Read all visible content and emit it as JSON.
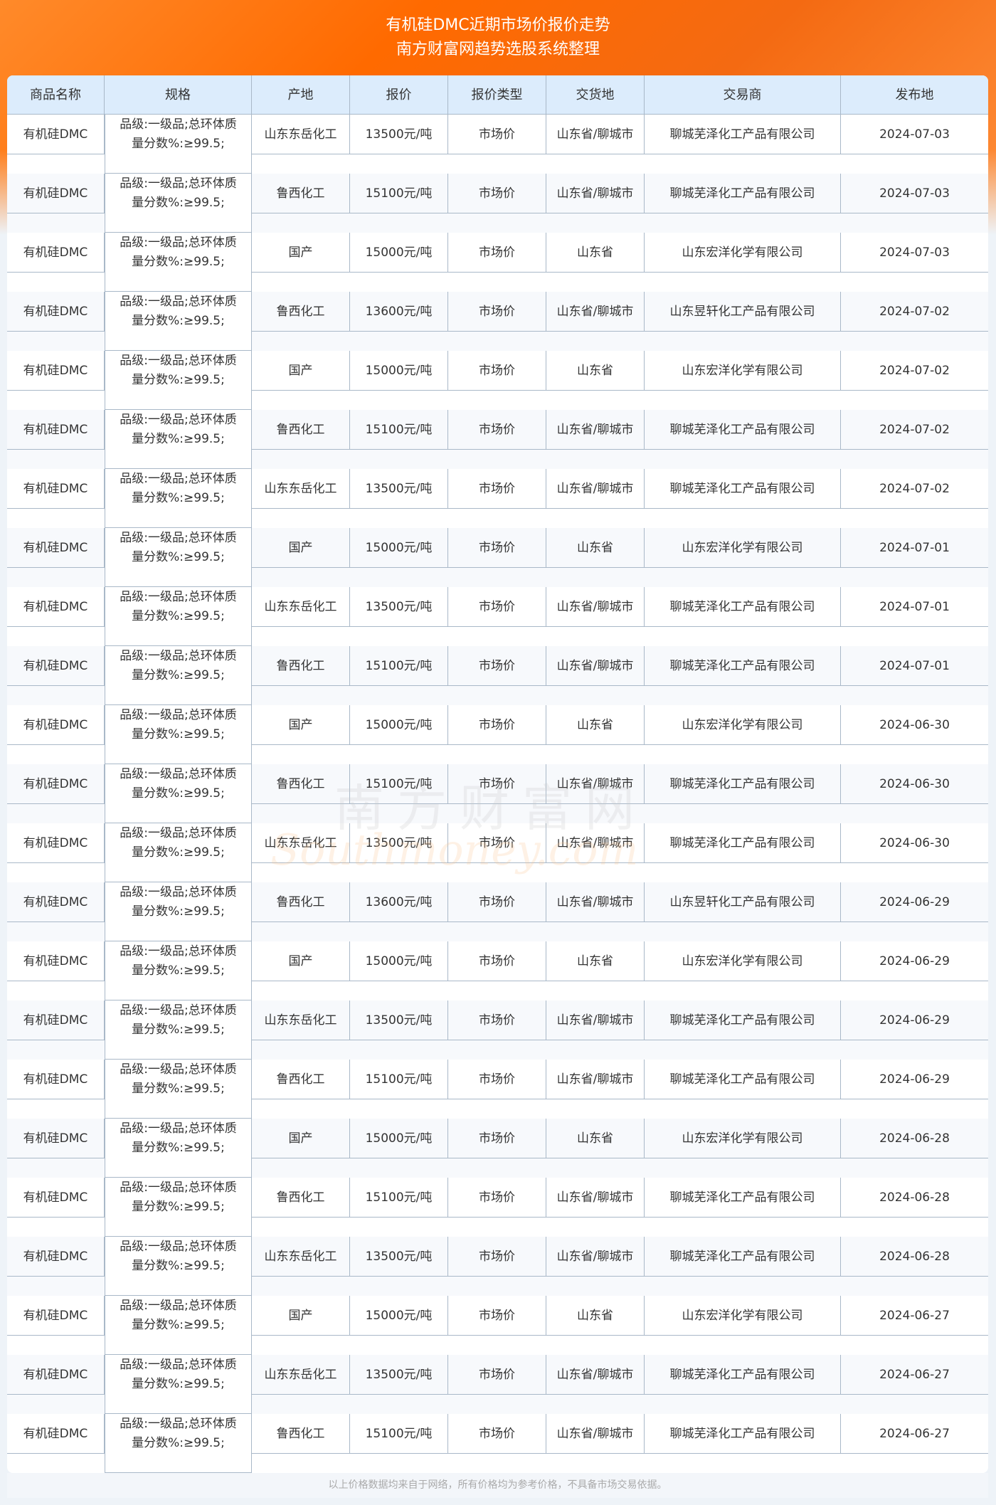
{
  "header": {
    "title": "有机硅DMC近期市场价报价走势",
    "subtitle": "南方财富网趋势选股系统整理"
  },
  "watermark": {
    "cn": "南方财富网",
    "en": "Southmoney.com"
  },
  "columns": [
    "商品名称",
    "规格",
    "产地",
    "报价",
    "报价类型",
    "交货地",
    "交易商",
    "发布地"
  ],
  "rows": [
    [
      "有机硅DMC",
      "品级:一级品;总环体质量分数%:≥99.5;",
      "山东东岳化工",
      "13500元/吨",
      "市场价",
      "山东省/聊城市",
      "聊城芜泽化工产品有限公司",
      "2024-07-03"
    ],
    [
      "有机硅DMC",
      "品级:一级品;总环体质量分数%:≥99.5;",
      "鲁西化工",
      "15100元/吨",
      "市场价",
      "山东省/聊城市",
      "聊城芜泽化工产品有限公司",
      "2024-07-03"
    ],
    [
      "有机硅DMC",
      "品级:一级品;总环体质量分数%:≥99.5;",
      "国产",
      "15000元/吨",
      "市场价",
      "山东省",
      "山东宏洋化学有限公司",
      "2024-07-03"
    ],
    [
      "有机硅DMC",
      "品级:一级品;总环体质量分数%:≥99.5;",
      "鲁西化工",
      "13600元/吨",
      "市场价",
      "山东省/聊城市",
      "山东昱轩化工产品有限公司",
      "2024-07-02"
    ],
    [
      "有机硅DMC",
      "品级:一级品;总环体质量分数%:≥99.5;",
      "国产",
      "15000元/吨",
      "市场价",
      "山东省",
      "山东宏洋化学有限公司",
      "2024-07-02"
    ],
    [
      "有机硅DMC",
      "品级:一级品;总环体质量分数%:≥99.5;",
      "鲁西化工",
      "15100元/吨",
      "市场价",
      "山东省/聊城市",
      "聊城芜泽化工产品有限公司",
      "2024-07-02"
    ],
    [
      "有机硅DMC",
      "品级:一级品;总环体质量分数%:≥99.5;",
      "山东东岳化工",
      "13500元/吨",
      "市场价",
      "山东省/聊城市",
      "聊城芜泽化工产品有限公司",
      "2024-07-02"
    ],
    [
      "有机硅DMC",
      "品级:一级品;总环体质量分数%:≥99.5;",
      "国产",
      "15000元/吨",
      "市场价",
      "山东省",
      "山东宏洋化学有限公司",
      "2024-07-01"
    ],
    [
      "有机硅DMC",
      "品级:一级品;总环体质量分数%:≥99.5;",
      "山东东岳化工",
      "13500元/吨",
      "市场价",
      "山东省/聊城市",
      "聊城芜泽化工产品有限公司",
      "2024-07-01"
    ],
    [
      "有机硅DMC",
      "品级:一级品;总环体质量分数%:≥99.5;",
      "鲁西化工",
      "15100元/吨",
      "市场价",
      "山东省/聊城市",
      "聊城芜泽化工产品有限公司",
      "2024-07-01"
    ],
    [
      "有机硅DMC",
      "品级:一级品;总环体质量分数%:≥99.5;",
      "国产",
      "15000元/吨",
      "市场价",
      "山东省",
      "山东宏洋化学有限公司",
      "2024-06-30"
    ],
    [
      "有机硅DMC",
      "品级:一级品;总环体质量分数%:≥99.5;",
      "鲁西化工",
      "15100元/吨",
      "市场价",
      "山东省/聊城市",
      "聊城芜泽化工产品有限公司",
      "2024-06-30"
    ],
    [
      "有机硅DMC",
      "品级:一级品;总环体质量分数%:≥99.5;",
      "山东东岳化工",
      "13500元/吨",
      "市场价",
      "山东省/聊城市",
      "聊城芜泽化工产品有限公司",
      "2024-06-30"
    ],
    [
      "有机硅DMC",
      "品级:一级品;总环体质量分数%:≥99.5;",
      "鲁西化工",
      "13600元/吨",
      "市场价",
      "山东省/聊城市",
      "山东昱轩化工产品有限公司",
      "2024-06-29"
    ],
    [
      "有机硅DMC",
      "品级:一级品;总环体质量分数%:≥99.5;",
      "国产",
      "15000元/吨",
      "市场价",
      "山东省",
      "山东宏洋化学有限公司",
      "2024-06-29"
    ],
    [
      "有机硅DMC",
      "品级:一级品;总环体质量分数%:≥99.5;",
      "山东东岳化工",
      "13500元/吨",
      "市场价",
      "山东省/聊城市",
      "聊城芜泽化工产品有限公司",
      "2024-06-29"
    ],
    [
      "有机硅DMC",
      "品级:一级品;总环体质量分数%:≥99.5;",
      "鲁西化工",
      "15100元/吨",
      "市场价",
      "山东省/聊城市",
      "聊城芜泽化工产品有限公司",
      "2024-06-29"
    ],
    [
      "有机硅DMC",
      "品级:一级品;总环体质量分数%:≥99.5;",
      "国产",
      "15000元/吨",
      "市场价",
      "山东省",
      "山东宏洋化学有限公司",
      "2024-06-28"
    ],
    [
      "有机硅DMC",
      "品级:一级品;总环体质量分数%:≥99.5;",
      "鲁西化工",
      "15100元/吨",
      "市场价",
      "山东省/聊城市",
      "聊城芜泽化工产品有限公司",
      "2024-06-28"
    ],
    [
      "有机硅DMC",
      "品级:一级品;总环体质量分数%:≥99.5;",
      "山东东岳化工",
      "13500元/吨",
      "市场价",
      "山东省/聊城市",
      "聊城芜泽化工产品有限公司",
      "2024-06-28"
    ],
    [
      "有机硅DMC",
      "品级:一级品;总环体质量分数%:≥99.5;",
      "国产",
      "15000元/吨",
      "市场价",
      "山东省",
      "山东宏洋化学有限公司",
      "2024-06-27"
    ],
    [
      "有机硅DMC",
      "品级:一级品;总环体质量分数%:≥99.5;",
      "山东东岳化工",
      "13500元/吨",
      "市场价",
      "山东省/聊城市",
      "聊城芜泽化工产品有限公司",
      "2024-06-27"
    ],
    [
      "有机硅DMC",
      "品级:一级品;总环体质量分数%:≥99.5;",
      "鲁西化工",
      "15100元/吨",
      "市场价",
      "山东省/聊城市",
      "聊城芜泽化工产品有限公司",
      "2024-06-27"
    ]
  ],
  "footer": "以上价格数据均来自于网络，所有价格均为参考价格，不具备市场交易依据。"
}
